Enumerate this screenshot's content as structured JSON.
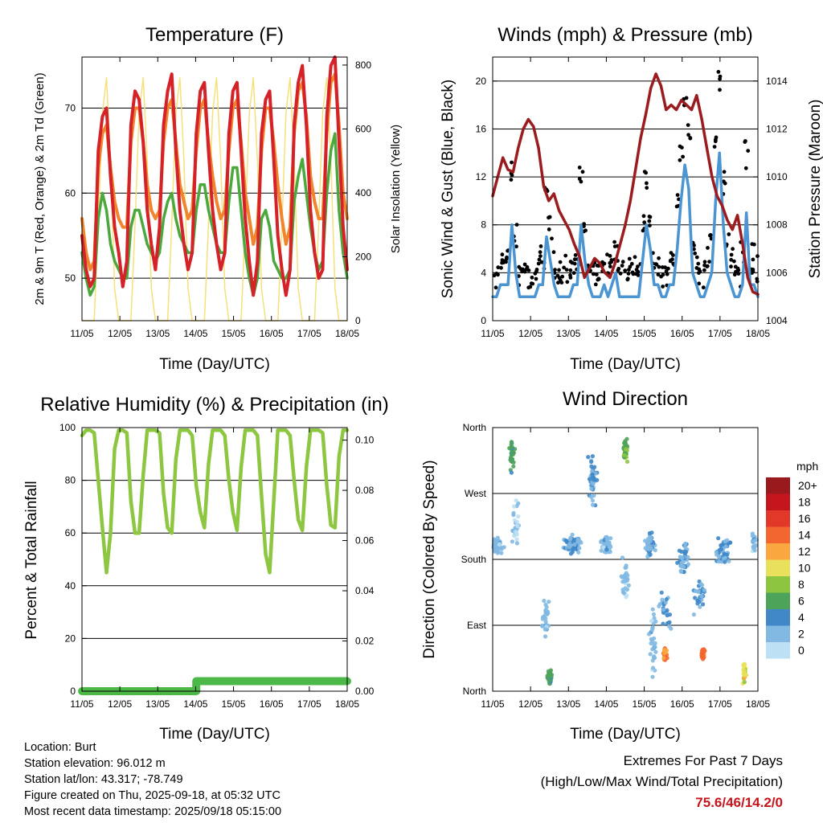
{
  "colors": {
    "temp_2m": "#d52128",
    "temp_9m": "#f0852d",
    "dewpoint": "#4aa83d",
    "solar": "#f5e07a",
    "wind_speed": "#4b95d2",
    "wind_gust": "#000000",
    "pressure": "#9b1c1f",
    "rh": "#8dc641",
    "precip": "#4cb848"
  },
  "chart_data": [
    {
      "id": "temperature",
      "type": "line",
      "title": "Temperature (F)",
      "xlabel": "Time (Day/UTC)",
      "ylabel": "2m & 9m T (Red, Orange) & 2m Td (Green)",
      "y2label": "Solar Insolation (Yellow)",
      "x_ticks": [
        "11/05",
        "12/05",
        "13/05",
        "14/05",
        "15/05",
        "16/05",
        "17/05",
        "18/05"
      ],
      "ylim": [
        45,
        76
      ],
      "y_ticks": [
        50,
        60,
        70
      ],
      "y2lim": [
        0,
        825
      ],
      "y2_ticks": [
        0,
        200,
        400,
        600,
        800
      ],
      "grid": true,
      "series": [
        {
          "key": "t2m",
          "axis": "left",
          "values": [
            55,
            51,
            49,
            50,
            65,
            69,
            70,
            62,
            56,
            53,
            49,
            52,
            68,
            72,
            71,
            66,
            58,
            54,
            51,
            56,
            68,
            72,
            74,
            65,
            58,
            54,
            51,
            53,
            67,
            72,
            73,
            65,
            58,
            54,
            51,
            53,
            67,
            72,
            73,
            65,
            57,
            52,
            48,
            52,
            67,
            71,
            72,
            64,
            55,
            51,
            48,
            51,
            68,
            73,
            75,
            68,
            58,
            53,
            50,
            51,
            69,
            75,
            76,
            66,
            56,
            51
          ]
        },
        {
          "key": "t9m",
          "axis": "left",
          "values": [
            57,
            53,
            51,
            52,
            63,
            67,
            68,
            63,
            59,
            57,
            56,
            56,
            66,
            70,
            70,
            66,
            61,
            58,
            57,
            58,
            66,
            70,
            71,
            66,
            61,
            59,
            57,
            58,
            65,
            70,
            71,
            66,
            62,
            59,
            57,
            58,
            65,
            70,
            71,
            66,
            60,
            57,
            54,
            56,
            65,
            70,
            70,
            66,
            61,
            57,
            54,
            56,
            67,
            72,
            73,
            69,
            62,
            59,
            57,
            57,
            67,
            73,
            74,
            68,
            60,
            57
          ]
        },
        {
          "key": "td",
          "axis": "left",
          "values": [
            53,
            50,
            48,
            49,
            57,
            60,
            58,
            54,
            52,
            51,
            50,
            50,
            56,
            58,
            58,
            56,
            54,
            53,
            52,
            53,
            57,
            59,
            60,
            57,
            55,
            54,
            53,
            53,
            58,
            61,
            61,
            58,
            56,
            54,
            53,
            53,
            59,
            63,
            63,
            58,
            53,
            50,
            48,
            50,
            57,
            58,
            56,
            52,
            51,
            50,
            50,
            51,
            59,
            62,
            64,
            60,
            56,
            53,
            51,
            52,
            60,
            65,
            67,
            58,
            53,
            50
          ]
        },
        {
          "key": "solar",
          "axis": "right",
          "values": [
            0,
            0,
            0,
            0,
            300,
            650,
            760,
            500,
            100,
            0,
            0,
            0,
            0,
            300,
            650,
            760,
            500,
            100,
            0,
            0,
            0,
            0,
            300,
            650,
            760,
            500,
            100,
            0,
            0,
            0,
            0,
            300,
            650,
            760,
            500,
            100,
            0,
            0,
            0,
            0,
            300,
            650,
            760,
            500,
            100,
            0,
            0,
            0,
            0,
            300,
            650,
            760,
            500,
            100,
            0,
            0,
            0,
            0,
            300,
            650,
            760,
            500,
            100,
            0,
            0,
            0
          ]
        }
      ]
    },
    {
      "id": "winds",
      "type": "line",
      "title": "Winds (mph) & Pressure (mb)",
      "xlabel": "Time (Day/UTC)",
      "ylabel": "Sonic Wind & Gust (Blue, Black)",
      "y2label": "Station Pressure (Maroon)",
      "x_ticks": [
        "11/05",
        "12/05",
        "13/05",
        "14/05",
        "15/05",
        "16/05",
        "17/05",
        "18/05"
      ],
      "ylim": [
        0,
        22
      ],
      "y_ticks": [
        0,
        4,
        8,
        12,
        16,
        20
      ],
      "y2lim": [
        1004,
        1015
      ],
      "y2_ticks": [
        1004,
        1006,
        1008,
        1010,
        1012,
        1014
      ],
      "grid": true,
      "series": [
        {
          "key": "pressure",
          "axis": "right",
          "values": [
            1009.2,
            1010.0,
            1010.8,
            1010.3,
            1010.2,
            1011.2,
            1012.0,
            1012.4,
            1012.1,
            1011.2,
            1009.6,
            1009.0,
            1009.3,
            1008.6,
            1008.2,
            1007.8,
            1007.2,
            1006.7,
            1005.8,
            1006.2,
            1006.6,
            1006.4,
            1006.0,
            1005.8,
            1006.4,
            1007.2,
            1008.0,
            1009.0,
            1010.3,
            1011.6,
            1012.6,
            1013.7,
            1014.3,
            1013.8,
            1012.8,
            1013.0,
            1012.8,
            1013.2,
            1013.0,
            1012.8,
            1013.4,
            1012.4,
            1011.2,
            1010.0,
            1009.2,
            1008.8,
            1008.2,
            1007.8,
            1008.4,
            1007.2,
            1005.8,
            1005.2,
            1005.1
          ]
        },
        {
          "key": "speed",
          "axis": "left",
          "values": [
            2,
            2,
            3,
            3,
            3,
            8,
            4,
            2,
            2,
            2,
            2,
            2,
            3,
            3,
            7,
            5,
            3,
            2,
            2,
            2,
            2,
            3,
            3,
            8,
            5,
            3,
            2,
            2,
            2,
            3,
            2,
            3,
            4,
            2,
            2,
            2,
            2,
            2,
            2,
            5,
            8,
            6,
            3,
            3,
            2,
            2,
            3,
            3,
            6,
            10,
            13,
            11,
            4,
            3,
            2,
            2,
            3,
            4,
            10,
            14,
            8,
            4,
            3,
            2,
            2,
            3,
            9,
            3,
            3,
            2
          ]
        },
        {
          "key": "gust",
          "axis": "left",
          "values": [
            4,
            4,
            5,
            5,
            6,
            12,
            7,
            4,
            4,
            4,
            4,
            4,
            5,
            5,
            11,
            8,
            5,
            4,
            4,
            4,
            4,
            5,
            5,
            12,
            8,
            5,
            4,
            4,
            4,
            5,
            4,
            5,
            6,
            4,
            4,
            4,
            4,
            4,
            4,
            8,
            12,
            9,
            5,
            5,
            4,
            4,
            5,
            5,
            10,
            14,
            18,
            16,
            7,
            5,
            4,
            4,
            5,
            7,
            15,
            20,
            12,
            7,
            5,
            4,
            4,
            5,
            14,
            5,
            5,
            4
          ]
        }
      ]
    },
    {
      "id": "humidity",
      "type": "line",
      "title": "Relative Humidity (%) & Precipitation (in)",
      "xlabel": "Time (Day/UTC)",
      "ylabel": "Percent & Total Rainfall",
      "x_ticks": [
        "11/05",
        "12/05",
        "13/05",
        "14/05",
        "15/05",
        "16/05",
        "17/05",
        "18/05"
      ],
      "ylim": [
        0,
        100
      ],
      "y_ticks": [
        0,
        20,
        40,
        60,
        80,
        100
      ],
      "y2lim": [
        0,
        0.105
      ],
      "y2_ticks": [
        "0.00",
        "0.02",
        "0.04",
        "0.06",
        "0.08",
        "0.10"
      ],
      "grid": true,
      "series": [
        {
          "key": "rh",
          "axis": "left",
          "values": [
            97,
            99,
            99,
            98,
            80,
            62,
            45,
            60,
            92,
            99,
            99,
            98,
            72,
            60,
            60,
            82,
            99,
            99,
            99,
            98,
            75,
            62,
            60,
            88,
            99,
            99,
            99,
            97,
            78,
            68,
            62,
            86,
            99,
            99,
            99,
            97,
            80,
            68,
            61,
            85,
            99,
            99,
            99,
            97,
            74,
            52,
            45,
            72,
            99,
            99,
            99,
            97,
            80,
            65,
            61,
            85,
            99,
            99,
            99,
            98,
            78,
            63,
            62,
            89,
            99,
            99
          ]
        },
        {
          "key": "precip",
          "axis": "right",
          "values": [
            0,
            0,
            0,
            0,
            0,
            0,
            0,
            0,
            0,
            0,
            0,
            0,
            0,
            0,
            0,
            0,
            0,
            0,
            0,
            0,
            0,
            0,
            0,
            0,
            0,
            0,
            0,
            0,
            0.004,
            0.004,
            0.004,
            0.004,
            0.004,
            0.004,
            0.004,
            0.004,
            0.004,
            0.004,
            0.004,
            0.004,
            0.004,
            0.004,
            0.004,
            0.004,
            0.004,
            0.004,
            0.004,
            0.004,
            0.004,
            0.004,
            0.004,
            0.004,
            0.004,
            0.004,
            0.004,
            0.004,
            0.004,
            0.004,
            0.004,
            0.004,
            0.004,
            0.004,
            0.004,
            0.004,
            0.004,
            0.004
          ]
        }
      ]
    },
    {
      "id": "direction",
      "type": "scatter",
      "title": "Wind Direction",
      "xlabel": "Time (Day/UTC)",
      "ylabel": "Direction (Colored By Speed)",
      "x_ticks": [
        "11/05",
        "12/05",
        "13/05",
        "14/05",
        "15/05",
        "16/05",
        "17/05",
        "18/05"
      ],
      "ylim": [
        0,
        360
      ],
      "y_ticks": [
        "North",
        "East",
        "South",
        "West",
        "North"
      ],
      "grid": true,
      "clusters": [
        {
          "day": 0.1,
          "dir": 200,
          "spread_t": 0.25,
          "spread_d": 15,
          "speed": 2,
          "n": 70
        },
        {
          "day": 0.5,
          "dir": 320,
          "spread_t": 0.1,
          "spread_d": 30,
          "speed": 6,
          "n": 30
        },
        {
          "day": 0.6,
          "dir": 230,
          "spread_t": 0.15,
          "spread_d": 50,
          "speed": 1,
          "n": 30
        },
        {
          "day": 1.5,
          "dir": 20,
          "spread_t": 0.08,
          "spread_d": 15,
          "speed": 6,
          "n": 45
        },
        {
          "day": 1.4,
          "dir": 100,
          "spread_t": 0.12,
          "spread_d": 40,
          "speed": 2,
          "n": 30
        },
        {
          "day": 2.1,
          "dir": 200,
          "spread_t": 0.35,
          "spread_d": 15,
          "speed": 3,
          "n": 90
        },
        {
          "day": 2.65,
          "dir": 290,
          "spread_t": 0.15,
          "spread_d": 45,
          "speed": 3,
          "n": 50
        },
        {
          "day": 3.0,
          "dir": 200,
          "spread_t": 0.18,
          "spread_d": 15,
          "speed": 2,
          "n": 50
        },
        {
          "day": 3.5,
          "dir": 330,
          "spread_t": 0.08,
          "spread_d": 25,
          "speed": 7,
          "n": 45
        },
        {
          "day": 3.5,
          "dir": 150,
          "spread_t": 0.12,
          "spread_d": 35,
          "speed": 2,
          "n": 30
        },
        {
          "day": 4.15,
          "dir": 200,
          "spread_t": 0.18,
          "spread_d": 20,
          "speed": 3,
          "n": 55
        },
        {
          "day": 4.25,
          "dir": 70,
          "spread_t": 0.15,
          "spread_d": 60,
          "speed": 2,
          "n": 30
        },
        {
          "day": 4.55,
          "dir": 50,
          "spread_t": 0.06,
          "spread_d": 10,
          "speed": 13,
          "n": 35
        },
        {
          "day": 4.55,
          "dir": 110,
          "spread_t": 0.2,
          "spread_d": 30,
          "speed": 3,
          "n": 30
        },
        {
          "day": 5.05,
          "dir": 180,
          "spread_t": 0.2,
          "spread_d": 30,
          "speed": 3,
          "n": 45
        },
        {
          "day": 5.55,
          "dir": 50,
          "spread_t": 0.06,
          "spread_d": 10,
          "speed": 14,
          "n": 35
        },
        {
          "day": 5.45,
          "dir": 130,
          "spread_t": 0.2,
          "spread_d": 40,
          "speed": 3,
          "n": 30
        },
        {
          "day": 6.1,
          "dir": 190,
          "spread_t": 0.3,
          "spread_d": 30,
          "speed": 3,
          "n": 50
        },
        {
          "day": 6.65,
          "dir": 25,
          "spread_t": 0.06,
          "spread_d": 18,
          "speed": 10,
          "n": 35
        },
        {
          "day": 6.9,
          "dir": 200,
          "spread_t": 0.1,
          "spread_d": 20,
          "speed": 2,
          "n": 20
        }
      ],
      "legend": {
        "title": "mph",
        "labels": [
          "20+",
          "18",
          "16",
          "14",
          "12",
          "10",
          "8",
          "6",
          "4",
          "2",
          "0"
        ],
        "colors": [
          "#99191d",
          "#c4161c",
          "#e1382a",
          "#f4662f",
          "#f9a73e",
          "#e9e15b",
          "#8cc641",
          "#4ea35a",
          "#4088c8",
          "#82b9e3",
          "#bde0f4"
        ],
        "placement": "right"
      }
    }
  ],
  "station": {
    "location": "Location: Burt",
    "elevation": "Station elevation: 96.012 m",
    "latlon": "Station lat/lon: 43.317; -78.749",
    "created": "Figure created on Thu, 2025-09-18, at 05:32 UTC",
    "recent": "Most recent data timestamp: 2025/09/18 05:15:00"
  },
  "extremes": {
    "line1": "Extremes For Past 7 Days",
    "line2": "(High/Low/Max Wind/Total Precipitation)",
    "values": "75.6/46/14.2/0"
  }
}
